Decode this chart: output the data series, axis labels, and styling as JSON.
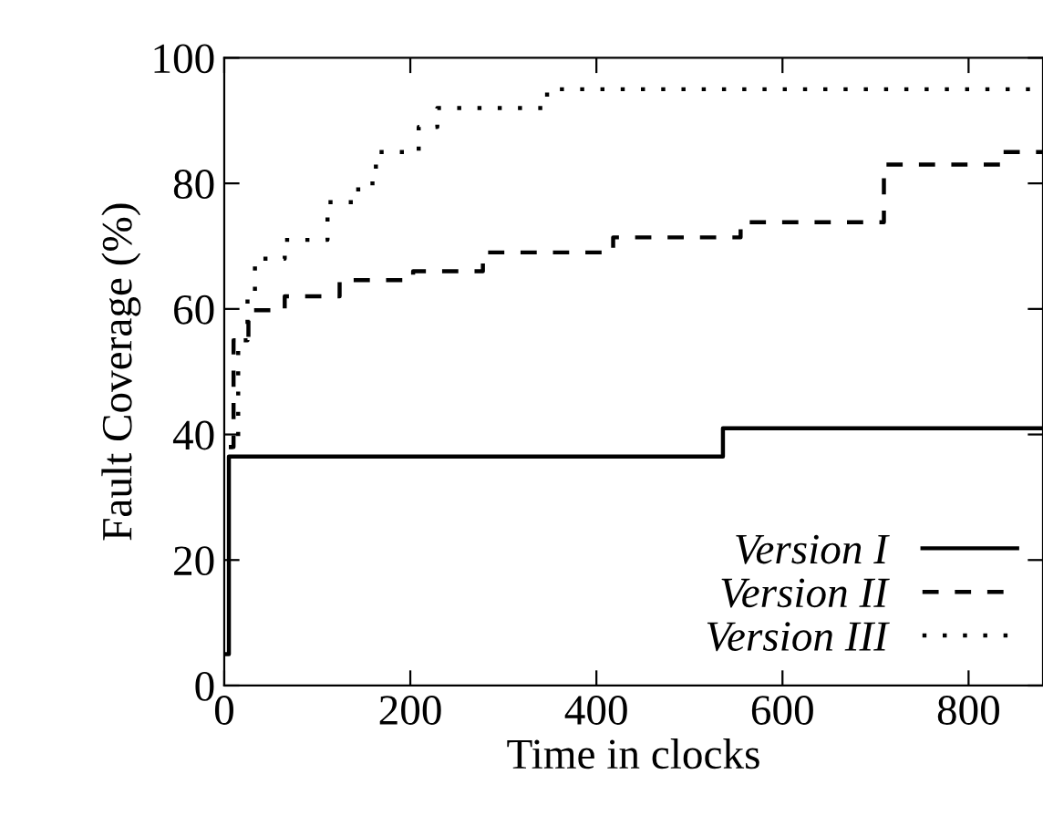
{
  "chart_data": {
    "type": "step",
    "xlabel": "Time in clocks",
    "ylabel": "Fault Coverage (%)",
    "xlim": [
      0,
      880
    ],
    "ylim": [
      0,
      100
    ],
    "xticks": [
      0,
      200,
      400,
      600,
      800
    ],
    "yticks": [
      0,
      20,
      40,
      60,
      80,
      100
    ],
    "grid": false,
    "legend": "bottom right",
    "series": [
      {
        "name": "Version I",
        "color": "#000000",
        "line_style": "solid",
        "x": [
          0,
          5,
          536,
          880
        ],
        "values": [
          5,
          36.5,
          41,
          41
        ]
      },
      {
        "name": "Version II",
        "color": "#000000",
        "line_style": "dashed",
        "x": [
          5,
          10,
          26,
          65,
          124,
          203,
          278,
          418,
          555,
          709,
          837,
          880
        ],
        "values": [
          38,
          55,
          59.8,
          62,
          64.6,
          66,
          69,
          71.4,
          73.8,
          83,
          85,
          85
        ]
      },
      {
        "name": "Version III",
        "color": "#000000",
        "line_style": "dotted",
        "x": [
          5,
          15,
          25,
          33,
          65,
          111,
          144,
          163,
          209,
          229,
          347,
          880
        ],
        "values": [
          38,
          55,
          62,
          68,
          71,
          77,
          80,
          85,
          89,
          92,
          95,
          95
        ]
      }
    ]
  }
}
